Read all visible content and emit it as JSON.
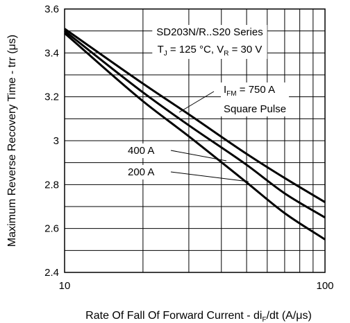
{
  "chart_data": {
    "type": "line",
    "x_scale": "log",
    "xlim": [
      10,
      100
    ],
    "ylim": [
      2.4,
      3.6
    ],
    "grid": true,
    "xlabel_parts": [
      "Rate Of Fall Of Forward Current - di",
      "F",
      "/dt (A/μs)"
    ],
    "ylabel": "Maximum Reverse Recovery Time - trr (μs)",
    "x_ticks": [
      10,
      100
    ],
    "x_tick_labels": [
      "10",
      "100"
    ],
    "y_ticks": [
      2.4,
      2.6,
      2.8,
      3,
      3.2,
      3.4,
      3.6
    ],
    "y_tick_labels": [
      "2.4",
      "2.6",
      "2.8",
      "3",
      "3.2",
      "3.4",
      "3.6"
    ],
    "title_box": {
      "series_line": "SD203N/R..S20 Series",
      "cond_parts": [
        "T",
        "J",
        " = 125 °C, V",
        "R",
        " = 30 V"
      ]
    },
    "series": [
      {
        "name_parts": [
          "I",
          "FM",
          " = 750 A"
        ],
        "name_line2": "Square Pulse",
        "x": [
          10,
          20,
          30,
          50,
          70,
          100
        ],
        "y": [
          3.51,
          3.26,
          3.12,
          2.94,
          2.83,
          2.72
        ]
      },
      {
        "name": "400 A",
        "x": [
          10,
          20,
          30,
          50,
          70,
          100
        ],
        "y": [
          3.5,
          3.22,
          3.07,
          2.89,
          2.76,
          2.65
        ]
      },
      {
        "name": "200 A",
        "x": [
          10,
          20,
          30,
          50,
          70,
          100
        ],
        "y": [
          3.49,
          3.18,
          3.02,
          2.81,
          2.67,
          2.55
        ]
      }
    ]
  }
}
